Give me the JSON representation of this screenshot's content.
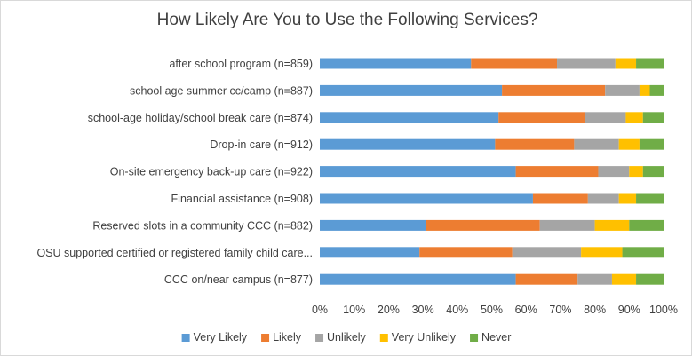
{
  "chart_data": {
    "type": "bar",
    "orientation": "horizontal",
    "stacked": "percent",
    "title": "How Likely Are You to Use the Following Services?",
    "xlabel": "",
    "ylabel": "",
    "xlim": [
      0,
      100
    ],
    "x_ticks": [
      "0%",
      "10%",
      "20%",
      "30%",
      "40%",
      "50%",
      "60%",
      "70%",
      "80%",
      "90%",
      "100%"
    ],
    "grid": false,
    "legend_position": "bottom",
    "categories": [
      "after school program (n=859)",
      "school age summer cc/camp (n=887)",
      "school-age holiday/school break care (n=874)",
      "Drop-in care (n=912)",
      "On-site emergency back-up care (n=922)",
      "Financial assistance (n=908)",
      "Reserved slots in a community CCC (n=882)",
      "OSU supported certified or registered family child care...",
      "CCC on/near campus (n=877)"
    ],
    "series": [
      {
        "name": "Very Likely",
        "color": "#5b9bd5",
        "values": [
          44,
          53,
          52,
          51,
          57,
          62,
          31,
          29,
          57
        ]
      },
      {
        "name": "Likely",
        "color": "#ed7d31",
        "values": [
          25,
          30,
          25,
          23,
          24,
          16,
          33,
          27,
          18
        ]
      },
      {
        "name": "Unlikely",
        "color": "#a5a5a5",
        "values": [
          17,
          10,
          12,
          13,
          9,
          9,
          16,
          20,
          10
        ]
      },
      {
        "name": "Very Unlikely",
        "color": "#ffc000",
        "values": [
          6,
          3,
          5,
          6,
          4,
          5,
          10,
          12,
          7
        ]
      },
      {
        "name": "Never",
        "color": "#70ad47",
        "values": [
          8,
          4,
          6,
          7,
          6,
          8,
          10,
          12,
          8
        ]
      }
    ]
  }
}
